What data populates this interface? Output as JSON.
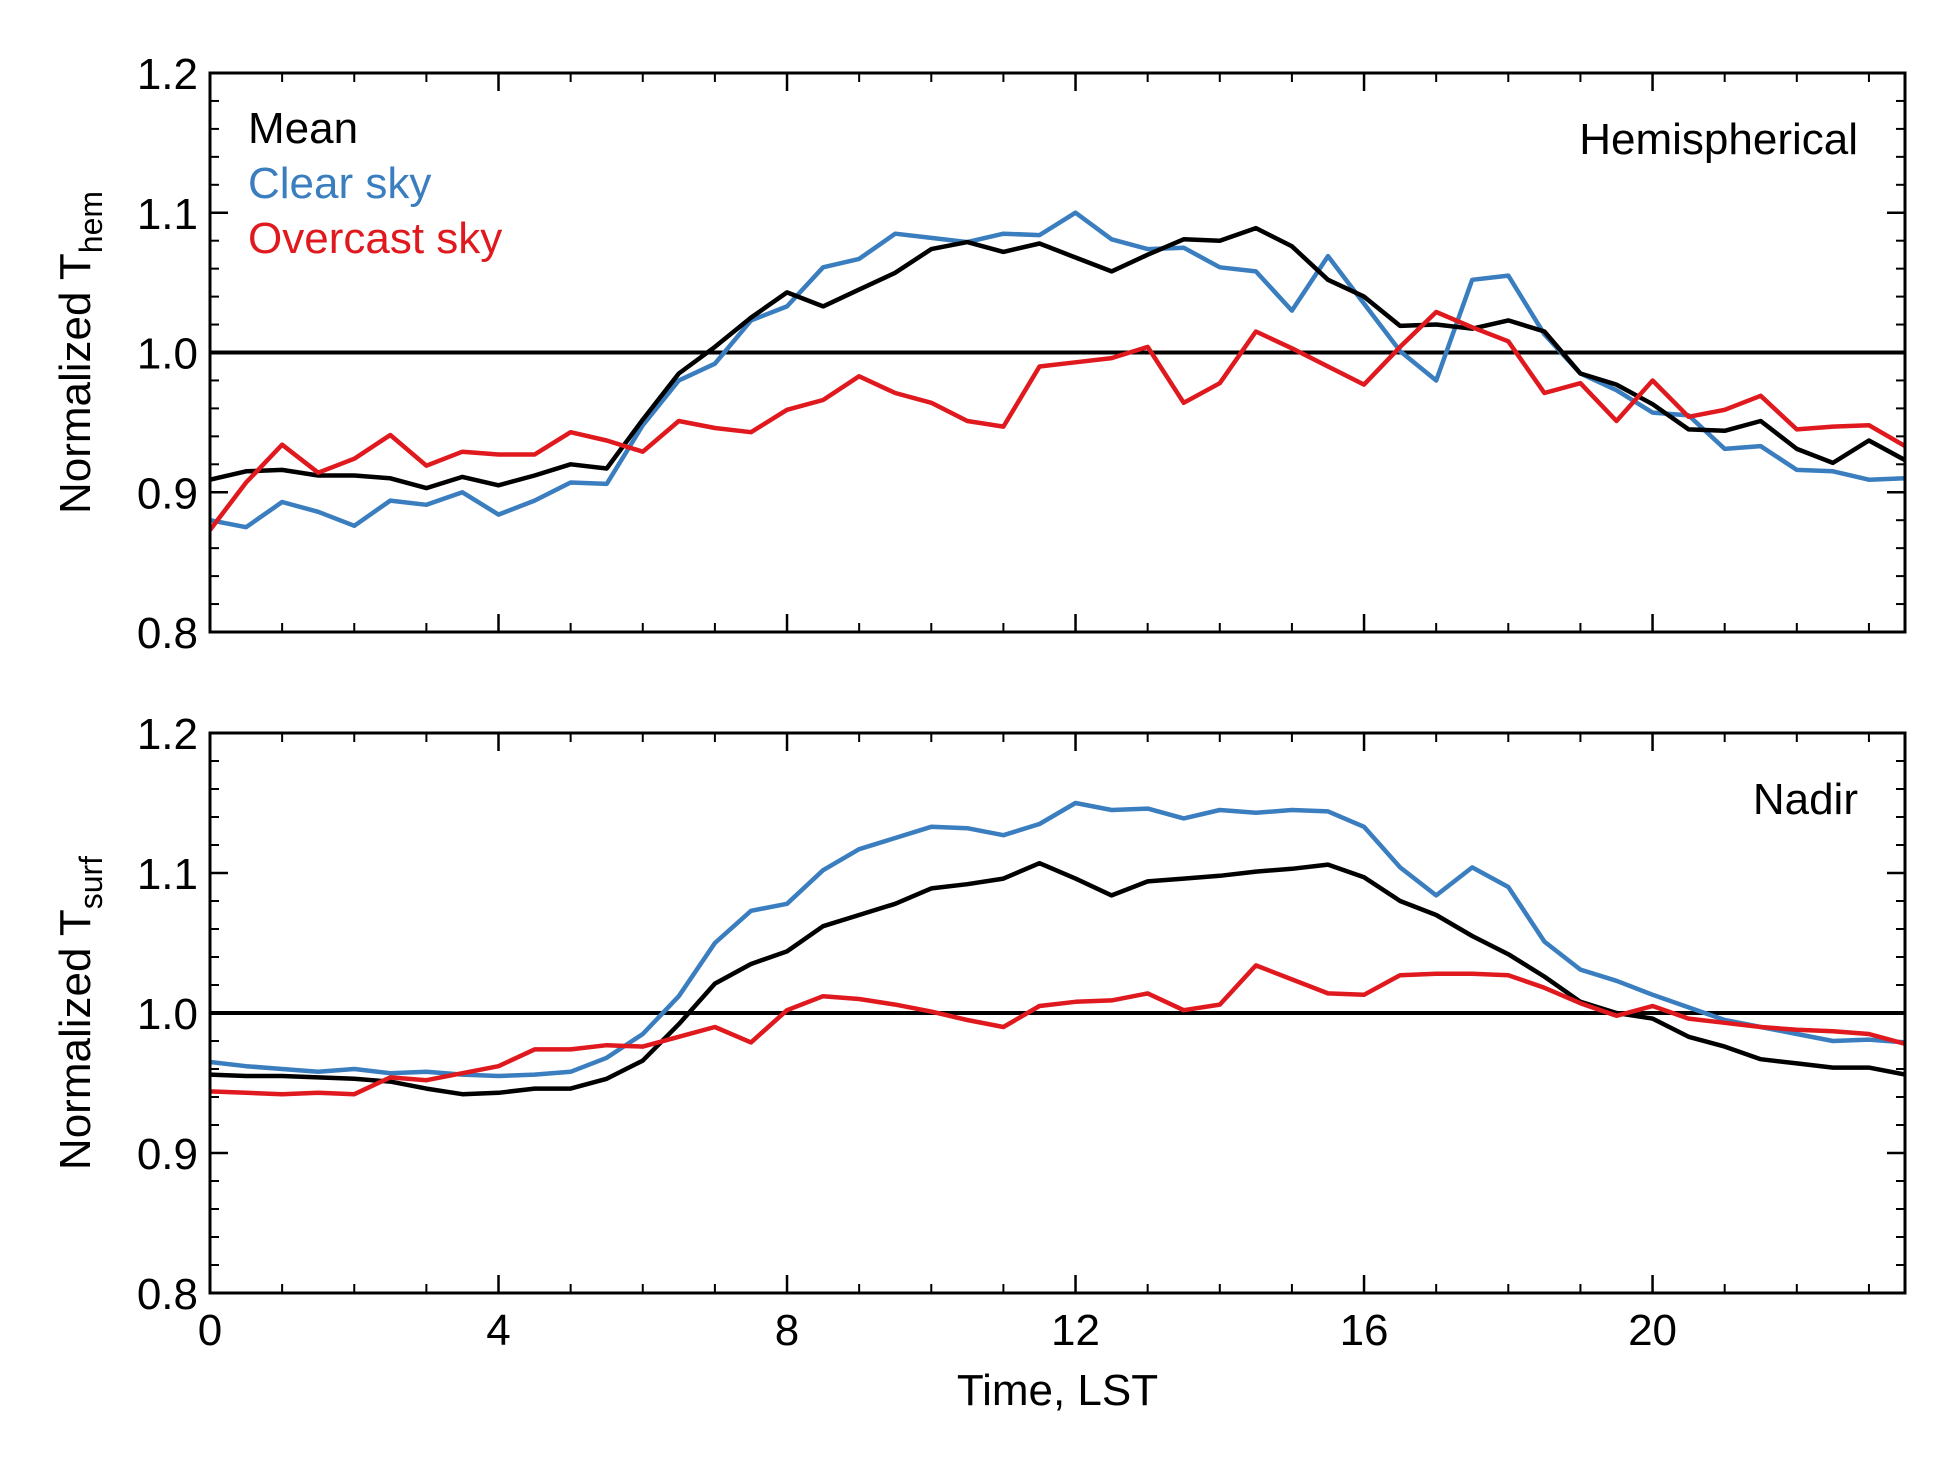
{
  "colors": {
    "mean": "#000000",
    "clear": "#3a7ebf",
    "overcast": "#e0191f"
  },
  "legend": [
    {
      "key": "mean",
      "label": "Mean"
    },
    {
      "key": "clear",
      "label": "Clear sky"
    },
    {
      "key": "overcast",
      "label": "Overcast sky"
    }
  ],
  "chart_data": [
    {
      "type": "line",
      "panel_label": "Hemispherical",
      "ylabel_main": "Normalized T",
      "ylabel_sub": "hem",
      "xlabel": "",
      "xlim": [
        0,
        23.5
      ],
      "ylim": [
        0.8,
        1.2
      ],
      "xticks": [
        0,
        4,
        8,
        12,
        16,
        20
      ],
      "yticks": [
        0.8,
        0.9,
        1.0,
        1.1,
        1.2
      ],
      "ytick_labels": [
        "0.8",
        "0.9",
        "1.0",
        "1.1",
        "1.2"
      ],
      "xtick_labels": [],
      "reference_line": 1.0,
      "x": [
        0,
        0.5,
        1,
        1.5,
        2,
        2.5,
        3,
        3.5,
        4,
        4.5,
        5,
        5.5,
        6,
        6.5,
        7,
        7.5,
        8,
        8.5,
        9,
        9.5,
        10,
        10.5,
        11,
        11.5,
        12,
        12.5,
        13,
        13.5,
        14,
        14.5,
        15,
        15.5,
        16,
        16.5,
        17,
        17.5,
        18,
        18.5,
        19,
        19.5,
        20,
        20.5,
        21,
        21.5,
        22,
        22.5,
        23,
        23.5
      ],
      "series": [
        {
          "key": "mean",
          "name": "Mean",
          "values": [
            0.909,
            0.915,
            0.916,
            0.912,
            0.912,
            0.91,
            0.903,
            0.911,
            0.905,
            0.912,
            0.92,
            0.917,
            0.952,
            0.985,
            1.004,
            1.025,
            1.043,
            1.033,
            1.045,
            1.057,
            1.074,
            1.079,
            1.072,
            1.078,
            1.068,
            1.058,
            1.07,
            1.081,
            1.08,
            1.089,
            1.076,
            1.052,
            1.04,
            1.019,
            1.02,
            1.017,
            1.023,
            1.015,
            0.985,
            0.977,
            0.963,
            0.945,
            0.944,
            0.951,
            0.931,
            0.921,
            0.937,
            0.923
          ]
        },
        {
          "key": "clear",
          "name": "Clear sky",
          "values": [
            0.88,
            0.875,
            0.893,
            0.886,
            0.876,
            0.894,
            0.891,
            0.9,
            0.884,
            0.894,
            0.907,
            0.906,
            0.948,
            0.98,
            0.992,
            1.023,
            1.033,
            1.061,
            1.067,
            1.085,
            1.082,
            1.079,
            1.085,
            1.084,
            1.1,
            1.081,
            1.074,
            1.075,
            1.061,
            1.058,
            1.03,
            1.069,
            1.035,
            1.001,
            0.98,
            1.052,
            1.055,
            1.013,
            0.985,
            0.973,
            0.957,
            0.955,
            0.931,
            0.933,
            0.916,
            0.915,
            0.909,
            0.91
          ]
        },
        {
          "key": "overcast",
          "name": "Overcast sky",
          "values": [
            0.873,
            0.907,
            0.934,
            0.914,
            0.924,
            0.941,
            0.919,
            0.929,
            0.927,
            0.927,
            0.943,
            0.937,
            0.929,
            0.951,
            0.946,
            0.943,
            0.959,
            0.966,
            0.983,
            0.971,
            0.964,
            0.951,
            0.947,
            0.99,
            0.993,
            0.996,
            1.004,
            0.964,
            0.978,
            1.015,
            1.003,
            0.99,
            0.977,
            1.004,
            1.029,
            1.018,
            1.008,
            0.971,
            0.978,
            0.951,
            0.98,
            0.954,
            0.959,
            0.969,
            0.945,
            0.947,
            0.948,
            0.933
          ]
        }
      ]
    },
    {
      "type": "line",
      "panel_label": "Nadir",
      "ylabel_main": "Normalized T",
      "ylabel_sub": "surf",
      "xlabel": "Time, LST",
      "xlim": [
        0,
        23.5
      ],
      "ylim": [
        0.8,
        1.2
      ],
      "xticks": [
        0,
        4,
        8,
        12,
        16,
        20
      ],
      "yticks": [
        0.8,
        0.9,
        1.0,
        1.1,
        1.2
      ],
      "ytick_labels": [
        "0.8",
        "0.9",
        "1.0",
        "1.1",
        "1.2"
      ],
      "xtick_labels": [
        "0",
        "4",
        "8",
        "12",
        "16",
        "20"
      ],
      "reference_line": 1.0,
      "x": [
        0,
        0.5,
        1,
        1.5,
        2,
        2.5,
        3,
        3.5,
        4,
        4.5,
        5,
        5.5,
        6,
        6.5,
        7,
        7.5,
        8,
        8.5,
        9,
        9.5,
        10,
        10.5,
        11,
        11.5,
        12,
        12.5,
        13,
        13.5,
        14,
        14.5,
        15,
        15.5,
        16,
        16.5,
        17,
        17.5,
        18,
        18.5,
        19,
        19.5,
        20,
        20.5,
        21,
        21.5,
        22,
        22.5,
        23,
        23.5
      ],
      "series": [
        {
          "key": "mean",
          "name": "Mean",
          "values": [
            0.956,
            0.955,
            0.955,
            0.954,
            0.953,
            0.951,
            0.946,
            0.942,
            0.943,
            0.946,
            0.946,
            0.953,
            0.966,
            0.992,
            1.021,
            1.035,
            1.044,
            1.062,
            1.07,
            1.078,
            1.089,
            1.092,
            1.096,
            1.107,
            1.096,
            1.084,
            1.094,
            1.096,
            1.098,
            1.101,
            1.103,
            1.106,
            1.097,
            1.08,
            1.07,
            1.055,
            1.042,
            1.026,
            1.008,
            1.0,
            0.996,
            0.983,
            0.976,
            0.967,
            0.964,
            0.961,
            0.961,
            0.956
          ]
        },
        {
          "key": "clear",
          "name": "Clear sky",
          "values": [
            0.965,
            0.962,
            0.96,
            0.958,
            0.96,
            0.957,
            0.958,
            0.956,
            0.955,
            0.956,
            0.958,
            0.968,
            0.985,
            1.012,
            1.05,
            1.073,
            1.078,
            1.102,
            1.117,
            1.125,
            1.133,
            1.132,
            1.127,
            1.135,
            1.15,
            1.145,
            1.146,
            1.139,
            1.145,
            1.143,
            1.145,
            1.144,
            1.133,
            1.104,
            1.084,
            1.104,
            1.09,
            1.051,
            1.031,
            1.023,
            1.013,
            1.004,
            0.995,
            0.99,
            0.985,
            0.98,
            0.981,
            0.979
          ]
        },
        {
          "key": "overcast",
          "name": "Overcast sky",
          "values": [
            0.944,
            0.943,
            0.942,
            0.943,
            0.942,
            0.954,
            0.952,
            0.957,
            0.962,
            0.974,
            0.974,
            0.977,
            0.976,
            0.983,
            0.99,
            0.979,
            1.002,
            1.012,
            1.01,
            1.006,
            1.001,
            0.995,
            0.99,
            1.005,
            1.008,
            1.009,
            1.014,
            1.002,
            1.006,
            1.034,
            1.024,
            1.014,
            1.013,
            1.027,
            1.028,
            1.028,
            1.027,
            1.018,
            1.007,
            0.998,
            1.005,
            0.996,
            0.993,
            0.99,
            0.988,
            0.987,
            0.985,
            0.978
          ]
        }
      ]
    }
  ]
}
